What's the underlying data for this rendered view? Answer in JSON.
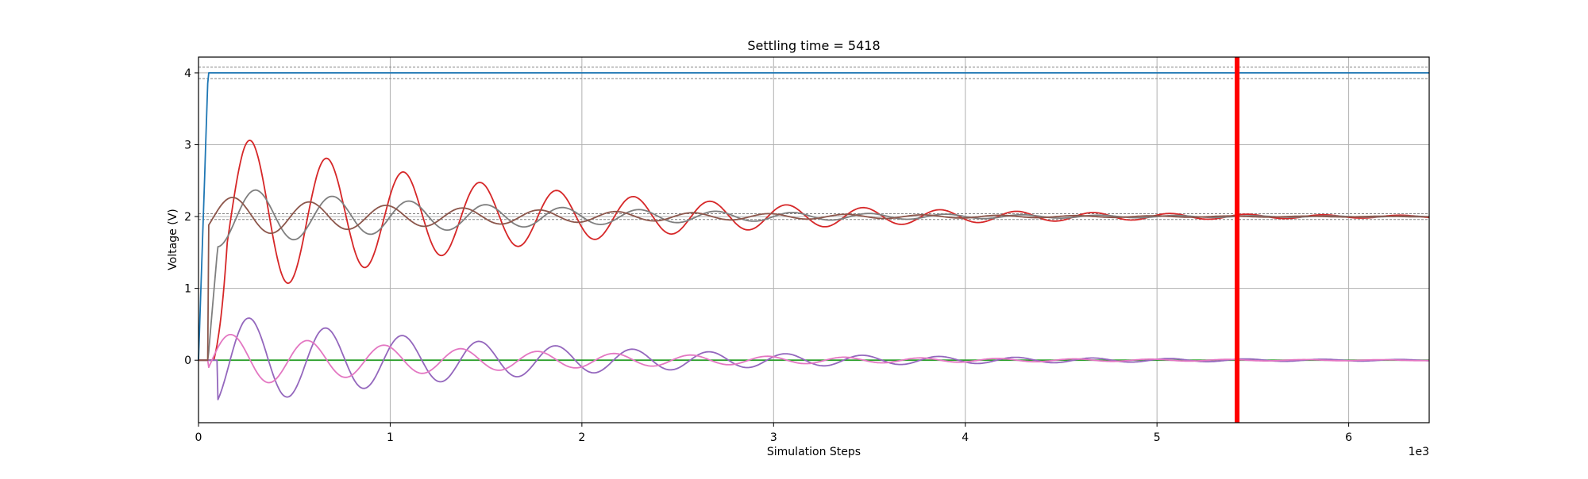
{
  "chart_data": {
    "type": "line",
    "title": "Settling time = 5418",
    "xlabel": "Simulation Steps",
    "ylabel": "Voltage (V)",
    "x_multiplier_label": "1e3",
    "xlim": [
      0,
      6.42
    ],
    "ylim": [
      -0.87,
      4.22
    ],
    "xticks": [
      0,
      1,
      2,
      3,
      4,
      5,
      6
    ],
    "yticks": [
      0,
      1,
      2,
      3,
      4
    ],
    "grid": true,
    "settling_time": 5418,
    "settling_marker_x": 5.418,
    "settling_marker_color": "#ff0000",
    "tolerance_bands": [
      {
        "center": 4.0,
        "lower": 3.92,
        "upper": 4.08
      },
      {
        "center": 2.0,
        "lower": 1.96,
        "upper": 2.04
      }
    ],
    "series": [
      {
        "color": "#1f77b4",
        "kind": "step",
        "start": 0.0,
        "rise_end": 0.05,
        "value": 4.0
      },
      {
        "color": "#2ca02c",
        "kind": "const",
        "value": 0.0
      },
      {
        "color": "#d62728",
        "kind": "osc",
        "start": 0.08,
        "rise_end": 0.15,
        "final": 2.0,
        "amp": 1.27,
        "decay": 0.67,
        "period": 0.4,
        "phase": 0.27
      },
      {
        "color": "#9467bd",
        "kind": "osc",
        "start": 0.1,
        "rise_end": 0.1,
        "final": 0.0,
        "amp": 0.7,
        "decay": 0.67,
        "period": 0.4,
        "phase": 0.265
      },
      {
        "color": "#e377c2",
        "kind": "osc",
        "start": 0.05,
        "rise_end": 0.05,
        "final": 0.0,
        "amp": 0.4,
        "decay": 0.67,
        "period": 0.4,
        "phase": 0.17
      },
      {
        "color": "#7f7f7f",
        "kind": "osc",
        "start": 0.05,
        "rise_end": 0.1,
        "final": 2.0,
        "amp": 0.45,
        "decay": 0.67,
        "period": 0.4,
        "phase": 0.7
      },
      {
        "color": "#8c564b",
        "kind": "osc",
        "start": 0.05,
        "rise_end": 0.05,
        "final": 2.0,
        "amp": 0.3,
        "decay": 0.67,
        "period": 0.4,
        "phase": 0.58
      }
    ]
  }
}
